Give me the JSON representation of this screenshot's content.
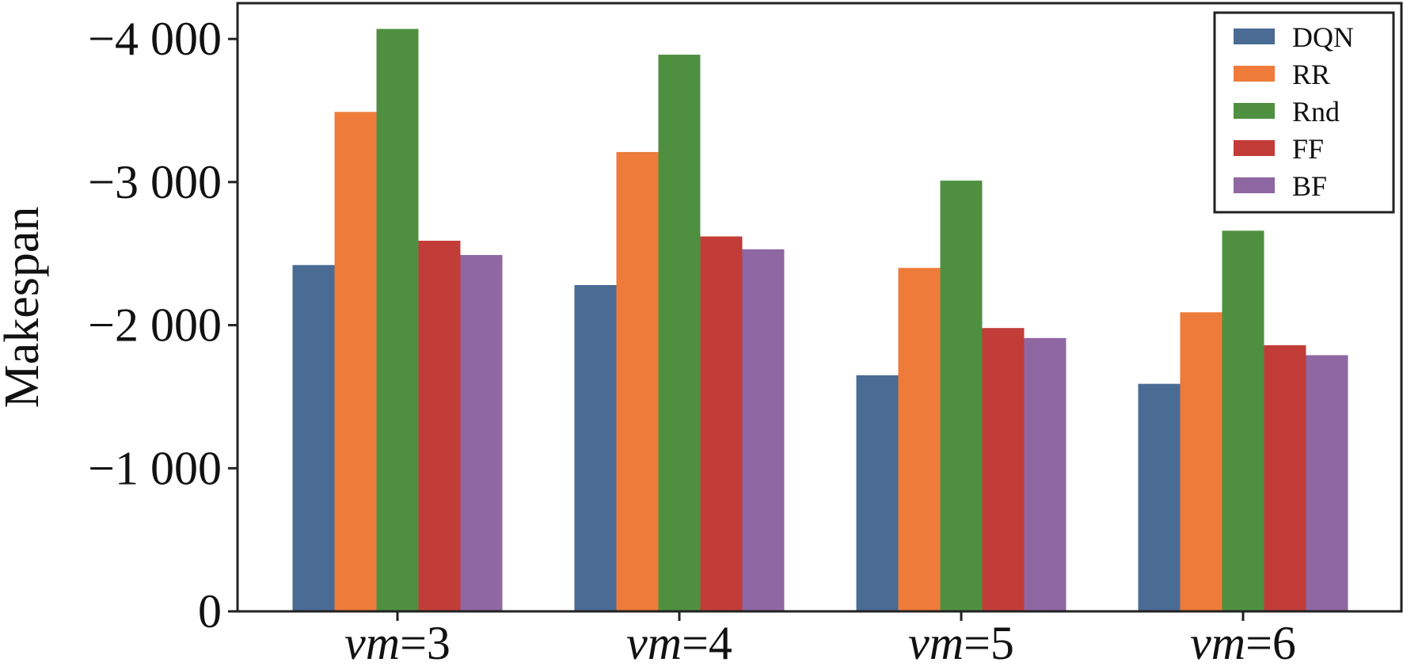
{
  "chart_data": {
    "type": "bar",
    "categories": [
      "vm=3",
      "vm=4",
      "vm=5",
      "vm=6"
    ],
    "category_labels": [
      {
        "var": "vm",
        "rest": "=3"
      },
      {
        "var": "vm",
        "rest": "=4"
      },
      {
        "var": "vm",
        "rest": "=5"
      },
      {
        "var": "vm",
        "rest": "=6"
      }
    ],
    "series": [
      {
        "name": "DQN",
        "color": "#4a6b94",
        "values": [
          -2420,
          -2280,
          -1650,
          -1590
        ]
      },
      {
        "name": "RR",
        "color": "#ee7b3a",
        "values": [
          -3490,
          -3210,
          -2400,
          -2090
        ]
      },
      {
        "name": "Rnd",
        "color": "#4f9040",
        "values": [
          -4070,
          -3890,
          -3010,
          -2660
        ]
      },
      {
        "name": "FF",
        "color": "#c23c38",
        "values": [
          -2590,
          -2620,
          -1980,
          -1860
        ]
      },
      {
        "name": "BF",
        "color": "#8e67a3",
        "values": [
          -2490,
          -2530,
          -1910,
          -1790
        ]
      }
    ],
    "ylabel": "Makespan",
    "xlabel": "",
    "title": "",
    "ylim": [
      0,
      -4250
    ],
    "yticks": [
      0,
      -1000,
      -2000,
      -3000,
      -4000
    ],
    "ytick_labels": [
      "0",
      "−1 000",
      "−2 000",
      "−3 000",
      "−4 000"
    ],
    "legend_position": "top-right",
    "grid": false
  }
}
